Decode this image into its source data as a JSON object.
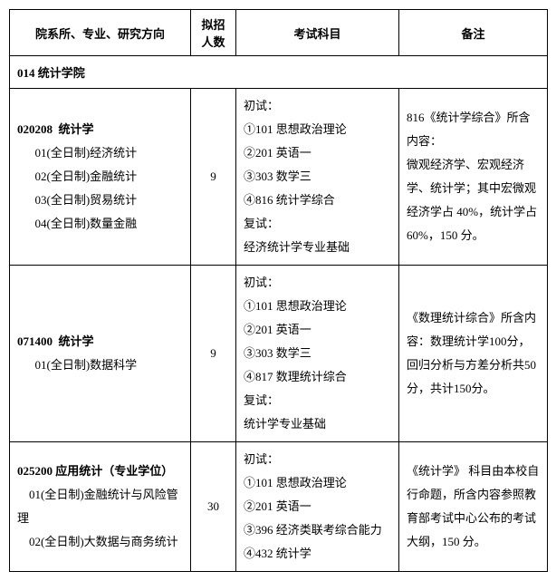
{
  "headers": {
    "col1": "院系所、专业、研究方向",
    "col2": "拟招人数",
    "col3": "考试科目",
    "col4": "备注"
  },
  "dept": "014 统计学院",
  "rows": [
    {
      "major_code": "020208",
      "major_name": "统计学",
      "directions": [
        "01(全日制)经济统计",
        "02(全日制)金融统计",
        "03(全日制)贸易统计",
        "04(全日制)数量金融"
      ],
      "quota": "9",
      "exam_preliminary_label": "初试：",
      "exam_items": [
        "①101 思想政治理论",
        "②201 英语一",
        "③303 数学三",
        "④816 统计学综合"
      ],
      "exam_retest_label": "复试：",
      "exam_retest": "经济统计学专业基础",
      "remark": "816《统计学综合》所含内容：",
      "remark_detail": "微观经济学、宏观经济学、统计学；其中宏微观经济学占 40%，统计学占60%，150 分。"
    },
    {
      "major_code": "071400",
      "major_name": "统计学",
      "directions": [
        "01(全日制)数据科学"
      ],
      "quota": "9",
      "exam_preliminary_label": "初试：",
      "exam_items": [
        "①101 思想政治理论",
        "②201 英语一",
        "③303 数学三",
        "④817 数理统计综合"
      ],
      "exam_retest_label": "复试：",
      "exam_retest": "统计学专业基础",
      "remark": "《数理统计综合》所含内容：数理统计学100分，回归分析与方差分析共50分，共计150分。"
    },
    {
      "major_code": "025200",
      "major_name": "应用统计（专业学位）",
      "directions": [
        "01(全日制)金融统计与风险管理",
        "02(全日制)大数据与商务统计"
      ],
      "quota": "30",
      "exam_preliminary_label": "初试：",
      "exam_items": [
        "①101 思想政治理论",
        "②201 英语一",
        "③396 经济类联考综合能力",
        "④432 统计学"
      ],
      "remark": "《统计学》 科目由本校自行命题，所含内容参照教育部考试中心公布的考试大纲，150 分。"
    }
  ]
}
